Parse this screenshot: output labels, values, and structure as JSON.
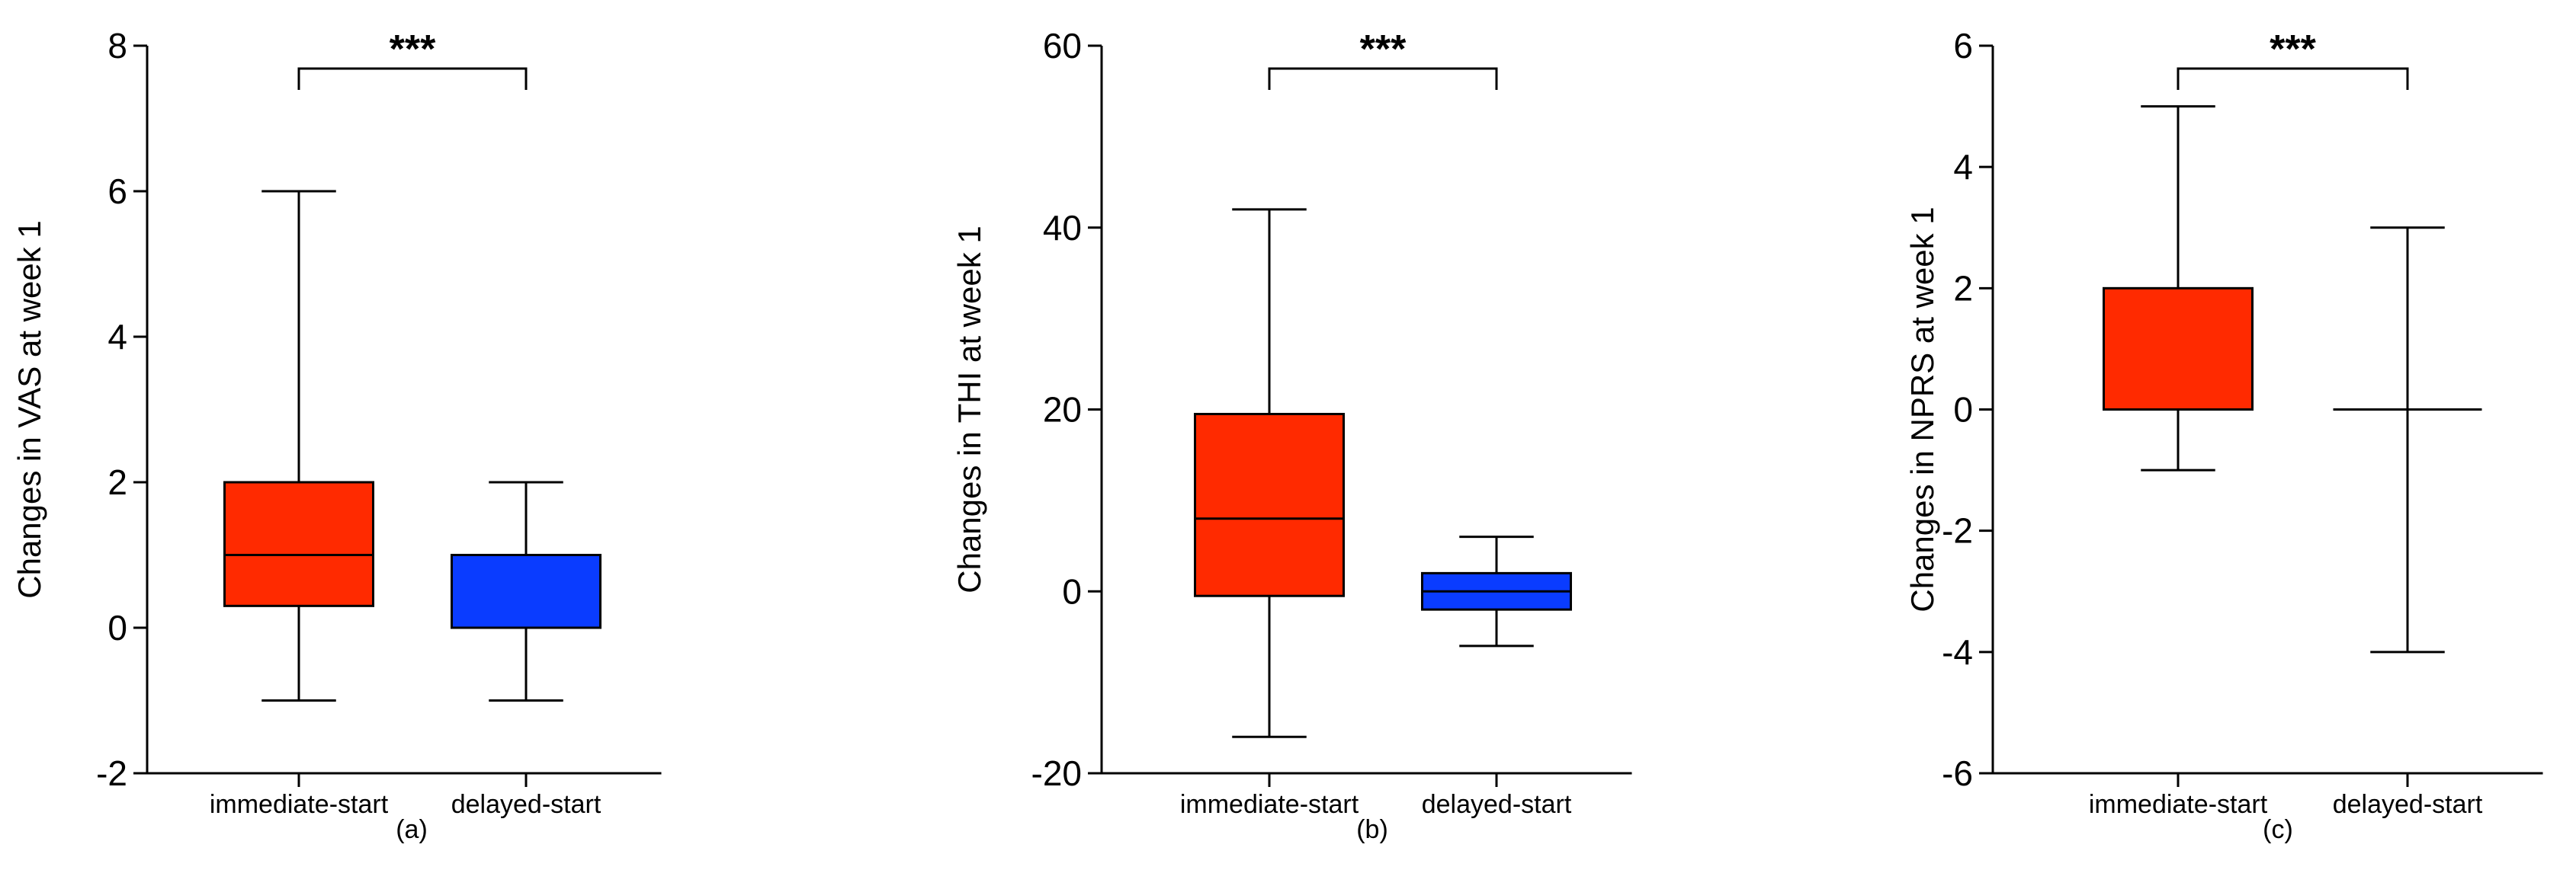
{
  "chart_data": [
    {
      "type": "box",
      "panel_label": "(a)",
      "ylabel": "Changes in VAS at week 1",
      "ylim": [
        -2,
        8
      ],
      "yticks": [
        -2,
        0,
        2,
        4,
        6,
        8
      ],
      "categories": [
        "immediate-start",
        "delayed-start"
      ],
      "boxes": [
        {
          "category": "immediate-start",
          "min": -1,
          "q1": 0.3,
          "median": 1,
          "q3": 2,
          "max": 6,
          "color": "#ff2a00"
        },
        {
          "category": "delayed-start",
          "min": -1,
          "q1": 0,
          "median": 0,
          "q3": 1,
          "max": 2,
          "color": "#0a3cff"
        }
      ],
      "significance": "***"
    },
    {
      "type": "box",
      "panel_label": "(b)",
      "ylabel": "Changes in THI at week 1",
      "ylim": [
        -20,
        60
      ],
      "yticks": [
        -20,
        0,
        20,
        40,
        60
      ],
      "categories": [
        "immediate-start",
        "delayed-start"
      ],
      "boxes": [
        {
          "category": "immediate-start",
          "min": -16,
          "q1": -0.5,
          "median": 8,
          "q3": 19.5,
          "max": 42,
          "color": "#ff2a00"
        },
        {
          "category": "delayed-start",
          "min": -6,
          "q1": -2,
          "median": 0,
          "q3": 2,
          "max": 6,
          "color": "#0a3cff"
        }
      ],
      "significance": "***"
    },
    {
      "type": "box",
      "panel_label": "(c)",
      "ylabel": "Changes in NPRS at week 1",
      "ylim": [
        -6,
        6
      ],
      "yticks": [
        -6,
        -4,
        -2,
        0,
        2,
        4,
        6
      ],
      "categories": [
        "immediate-start",
        "delayed-start"
      ],
      "boxes": [
        {
          "category": "immediate-start",
          "min": -1,
          "q1": 0,
          "median": 0,
          "q3": 2,
          "max": 5,
          "color": "#ff2a00"
        },
        {
          "category": "delayed-start",
          "min": -4,
          "q1": 0,
          "median": 0,
          "q3": 0,
          "max": 3,
          "color": "#0a3cff"
        }
      ],
      "significance": "***"
    }
  ]
}
